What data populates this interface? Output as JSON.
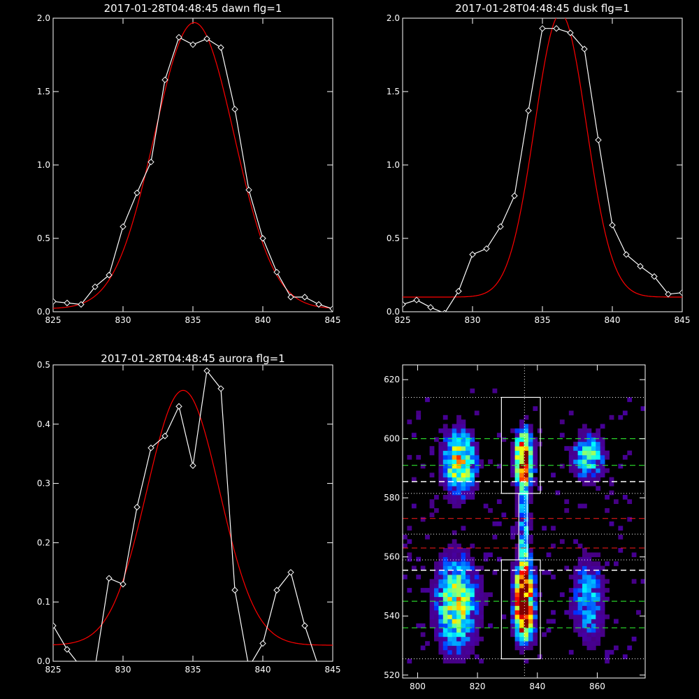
{
  "colors": {
    "background": "#000000",
    "data": "#ffffff",
    "fit": "#ff0000",
    "dotted": "#ffffff",
    "green_dash": "#32ff32",
    "red_dash": "#ff1a1a",
    "white_dash": "#ffffff"
  },
  "chart_data": [
    {
      "type": "line",
      "title": "2017-01-28T04:48:45 dawn flg=1",
      "xlim": [
        825,
        845
      ],
      "ylim": [
        0,
        2.0
      ],
      "xticks": [
        825,
        830,
        835,
        840,
        845
      ],
      "yticks": [
        0.0,
        0.5,
        1.0,
        1.5,
        2.0
      ],
      "xtick_labels": [
        "825",
        "830",
        "835",
        "840",
        "845"
      ],
      "ytick_labels": [
        "0.0",
        "0.5",
        "1.0",
        "1.5",
        "2.0"
      ],
      "series": [
        {
          "style": "white-line-diamonds",
          "x": [
            825,
            826,
            827,
            828,
            829,
            830,
            831,
            832,
            833,
            834,
            835,
            836,
            837,
            838,
            839,
            840,
            841,
            842,
            843,
            844,
            845
          ],
          "y": [
            0.07,
            0.06,
            0.05,
            0.17,
            0.25,
            0.58,
            0.81,
            1.02,
            1.58,
            1.87,
            1.82,
            1.86,
            1.8,
            1.38,
            0.83,
            0.5,
            0.27,
            0.1,
            0.1,
            0.05,
            0.02
          ]
        },
        {
          "style": "red-gaussian-fit",
          "amp": 1.95,
          "center": 835.1,
          "sigma": 2.85,
          "offset": 0.02
        }
      ]
    },
    {
      "type": "line",
      "title": "2017-01-28T04:48:45 dusk flg=1",
      "xlim": [
        825,
        845
      ],
      "ylim": [
        0,
        2.0
      ],
      "xticks": [
        825,
        830,
        835,
        840,
        845
      ],
      "yticks": [
        0.0,
        0.5,
        1.0,
        1.5,
        2.0
      ],
      "xtick_labels": [
        "825",
        "830",
        "835",
        "840",
        "845"
      ],
      "ytick_labels": [
        "0.0",
        "0.5",
        "1.0",
        "1.5",
        "2.0"
      ],
      "series": [
        {
          "style": "white-line-diamonds",
          "x": [
            825,
            826,
            827,
            828,
            829,
            830,
            831,
            832,
            833,
            834,
            835,
            836,
            837,
            838,
            839,
            840,
            841,
            842,
            843,
            844,
            845
          ],
          "y": [
            0.05,
            0.08,
            0.03,
            -0.01,
            0.14,
            0.39,
            0.43,
            0.58,
            0.79,
            1.37,
            1.93,
            1.93,
            1.9,
            1.79,
            1.17,
            0.59,
            0.39,
            0.31,
            0.24,
            0.12,
            0.13
          ]
        },
        {
          "style": "red-gaussian-fit",
          "amp": 1.93,
          "center": 836.3,
          "sigma": 1.85,
          "offset": 0.1
        }
      ]
    },
    {
      "type": "line",
      "title": "2017-01-28T04:48:45 aurora flg=1",
      "xlim": [
        825,
        845
      ],
      "ylim": [
        0,
        0.5
      ],
      "xticks": [
        825,
        830,
        835,
        840,
        845
      ],
      "yticks": [
        0.0,
        0.1,
        0.2,
        0.3,
        0.4,
        0.5
      ],
      "xtick_labels": [
        "825",
        "830",
        "835",
        "840",
        "845"
      ],
      "ytick_labels": [
        "0.0",
        "0.1",
        "0.2",
        "0.3",
        "0.4",
        "0.5"
      ],
      "series": [
        {
          "style": "white-line-diamonds",
          "x": [
            825,
            826,
            827,
            828,
            829,
            830,
            831,
            832,
            833,
            834,
            835,
            836,
            837,
            838,
            839,
            840,
            841,
            842,
            843,
            844,
            845
          ],
          "y": [
            0.06,
            0.02,
            -0.01,
            -0.01,
            0.14,
            0.13,
            0.26,
            0.36,
            0.38,
            0.43,
            0.33,
            0.49,
            0.46,
            0.12,
            -0.01,
            0.03,
            0.12,
            0.15,
            0.06,
            -0.01,
            -0.01
          ]
        },
        {
          "style": "red-gaussian-fit",
          "amp": 0.43,
          "center": 834.3,
          "sigma": 2.6,
          "offset": 0.027
        }
      ]
    },
    {
      "type": "heatmap",
      "xlim": [
        795,
        876
      ],
      "ylim": [
        519,
        625
      ],
      "xticks": [
        800,
        820,
        840,
        860
      ],
      "yticks": [
        520,
        540,
        560,
        580,
        600,
        620
      ],
      "xtick_labels": [
        "800",
        "820",
        "840",
        "860"
      ],
      "ytick_labels": [
        "520",
        "540",
        "560",
        "580",
        "600",
        "620"
      ],
      "pixel_size": 1.5,
      "blobs": [
        {
          "x": 835.5,
          "y": 593,
          "sx": 2.0,
          "sy": 6,
          "amp": 1.0
        },
        {
          "x": 835.5,
          "y": 549,
          "sx": 2.0,
          "sy": 6,
          "amp": 0.95
        },
        {
          "x": 835.5,
          "y": 539,
          "sx": 2.0,
          "sy": 5,
          "amp": 0.95
        },
        {
          "x": 835.5,
          "y": 568,
          "sx": 1.3,
          "sy": 14,
          "amp": 0.35
        },
        {
          "x": 814,
          "y": 592,
          "sx": 3.5,
          "sy": 7,
          "amp": 0.65
        },
        {
          "x": 813,
          "y": 544,
          "sx": 4.5,
          "sy": 10,
          "amp": 0.6
        },
        {
          "x": 857,
          "y": 594,
          "sx": 3.5,
          "sy": 5,
          "amp": 0.45
        },
        {
          "x": 857,
          "y": 545,
          "sx": 3.5,
          "sy": 9,
          "amp": 0.35
        }
      ],
      "boxes": [
        {
          "x0": 828,
          "x1": 841,
          "y0": 581.5,
          "y1": 614
        },
        {
          "x0": 828,
          "x1": 841,
          "y0": 525.5,
          "y1": 559
        },
        {
          "x0": 833.8,
          "x1": 836.6,
          "y0": 559,
          "y1": 581.5
        }
      ],
      "center_line_x": 835.7,
      "dotted_y": [
        614,
        581.5,
        567.7,
        559,
        525.5
      ],
      "green_dashed_y": [
        600,
        591,
        545,
        536
      ],
      "white_dashed_y": [
        585.5,
        555.5
      ],
      "red_dashed_y": [
        573,
        563
      ]
    }
  ]
}
